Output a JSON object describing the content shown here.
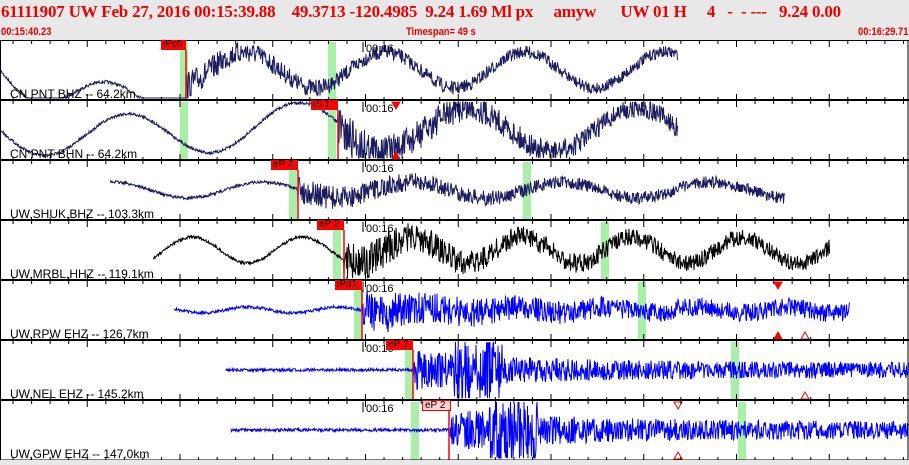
{
  "header": {
    "title": "61111907 UW Feb 27, 2016 00:15:39.88    49.3713 -120.4985  9.24 1.69 Ml px     amyw      UW 01 H     4   -  - ---   9.24 0.00",
    "start_time": "00:15:40.23",
    "timespan": "Timespan=  49 s",
    "end_time": "00:16:29.71"
  },
  "colors": {
    "header_text": "#ee0000",
    "pick_flag": "#ff0000",
    "window": "#a8f0a8",
    "trace_navy": "#1c1c60",
    "trace_black": "#000000",
    "trace_blue": "#0000ff"
  },
  "time_mark": "00:16",
  "channels": [
    {
      "label": "CN PNT BHZ -- 64.2km",
      "pick": "iPc0"
    },
    {
      "label": "CN PNT BHN -- 64.2km",
      "pick": "iS 1"
    },
    {
      "label": "UW,SHUK,BHZ -- 103.3km",
      "pick": "eP 2"
    },
    {
      "label": "UW,MRBL,HHZ -- 119.1km",
      "pick": "eP 2"
    },
    {
      "label": "UW,RPW EHZ -- 126,7km",
      "pick": "iPd1"
    },
    {
      "label": "UW,NEL EHZ -- 145.2km",
      "pick": "eP 2"
    },
    {
      "label": "UW,GPW EHZ -- 147.0km",
      "pick": "eP 2"
    }
  ]
}
